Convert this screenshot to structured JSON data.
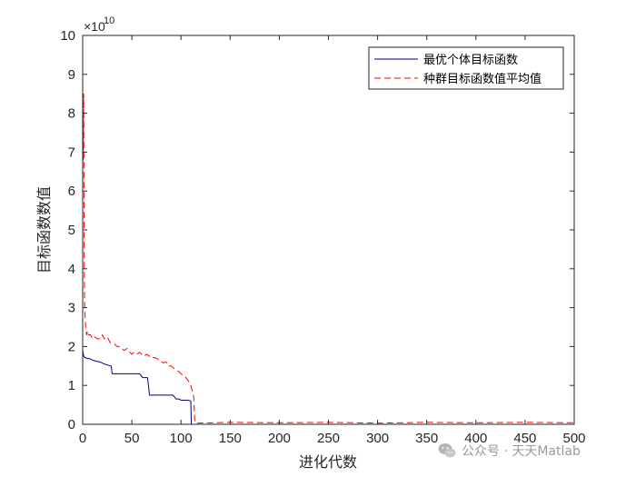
{
  "chart_data": {
    "type": "line",
    "title": "",
    "xlabel": "进化代数",
    "ylabel": "目标函数数值",
    "xlim": [
      0,
      500
    ],
    "ylim": [
      0,
      10
    ],
    "y_multiplier": "×10",
    "y_exponent": "10",
    "x_ticks": [
      "0",
      "50",
      "100",
      "150",
      "200",
      "250",
      "300",
      "350",
      "400",
      "450",
      "500"
    ],
    "y_ticks": [
      "0",
      "1",
      "2",
      "3",
      "4",
      "5",
      "6",
      "7",
      "8",
      "9",
      "10"
    ],
    "legend": {
      "placement": "top-right"
    },
    "series": [
      {
        "name": "最优个体目标函数",
        "color": "#00007f",
        "style": "solid",
        "x": [
          0,
          1,
          2,
          4,
          8,
          10,
          14,
          18,
          22,
          26,
          29,
          30,
          33,
          38,
          45,
          52,
          58,
          61,
          63,
          66,
          68,
          75,
          85,
          92,
          95,
          98,
          100,
          104,
          107,
          110,
          110.5,
          111,
          130,
          200,
          300,
          400,
          500
        ],
        "y": [
          1.9,
          1.75,
          1.72,
          1.7,
          1.68,
          1.65,
          1.62,
          1.6,
          1.55,
          1.52,
          1.5,
          1.3,
          1.3,
          1.3,
          1.3,
          1.3,
          1.3,
          1.2,
          1.2,
          1.2,
          0.75,
          0.75,
          0.75,
          0.75,
          0.65,
          0.65,
          0.62,
          0.62,
          0.62,
          0.6,
          0.0,
          0.0,
          0.0,
          0.0,
          0.0,
          0.0,
          0.0
        ]
      },
      {
        "name": "种群目标函数值平均值",
        "color": "#ff0000",
        "style": "dashed",
        "x": [
          0,
          0.5,
          1,
          1.5,
          2,
          3,
          4,
          5,
          6,
          8,
          10,
          12,
          15,
          18,
          20,
          22,
          25,
          28,
          30,
          33,
          35,
          38,
          40,
          42,
          45,
          48,
          50,
          52,
          55,
          58,
          60,
          62,
          65,
          68,
          70,
          72,
          75,
          78,
          80,
          82,
          85,
          88,
          90,
          92,
          95,
          98,
          100,
          103,
          105,
          108,
          110,
          112,
          113,
          114,
          115,
          150,
          200,
          250,
          300,
          350,
          400,
          450,
          500
        ],
        "y": [
          9.0,
          6.8,
          8.5,
          4.5,
          3.0,
          2.5,
          2.3,
          2.4,
          2.3,
          2.3,
          2.2,
          2.25,
          2.2,
          2.2,
          2.3,
          2.2,
          2.25,
          2.1,
          2.1,
          2.05,
          2.0,
          2.0,
          1.95,
          1.9,
          1.95,
          1.85,
          1.8,
          1.85,
          1.8,
          1.85,
          1.8,
          1.75,
          1.8,
          1.75,
          1.7,
          1.72,
          1.7,
          1.65,
          1.62,
          1.58,
          1.6,
          1.5,
          1.5,
          1.45,
          1.4,
          1.35,
          1.3,
          1.25,
          1.2,
          1.1,
          1.0,
          0.8,
          0.7,
          0.05,
          0.03,
          0.05,
          0.04,
          0.05,
          0.03,
          0.05,
          0.04,
          0.05,
          0.04
        ]
      }
    ]
  },
  "watermark": {
    "text": "公众号 · 天天Matlab",
    "icon": "wechat-icon"
  }
}
